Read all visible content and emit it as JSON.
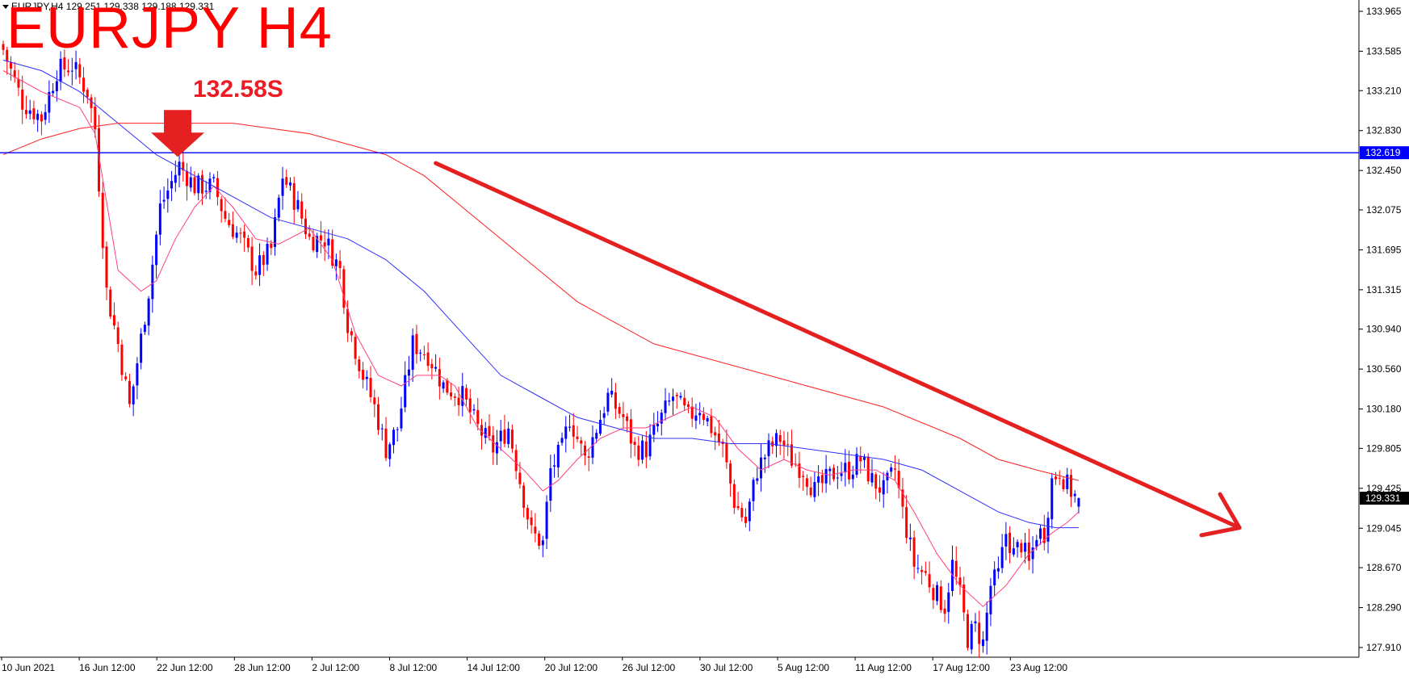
{
  "header": {
    "symbol_info": "EURJPY,H4  129.251 129.338 129.188 129.331",
    "title": "EURJPY H4",
    "annotation": "132.58S"
  },
  "colors": {
    "bull_candle": "#0000ff",
    "bear_candle": "#ff0000",
    "ma_fast": "#ff3f7f",
    "ma_mid": "#3030ff",
    "ma_slow": "#ff2020",
    "level_line": "#0000ff",
    "trend_arrow": "#e52020",
    "down_marker": "#e52020"
  },
  "chart_data": {
    "type": "candlestick",
    "symbol": "EURJPY",
    "timeframe": "H4",
    "ylim": [
      127.75,
      134.05
    ],
    "y_ticks": [
      "133.965",
      "133.585",
      "133.210",
      "132.830",
      "132.450",
      "132.075",
      "131.695",
      "131.315",
      "130.940",
      "130.560",
      "130.180",
      "129.805",
      "129.425",
      "129.045",
      "128.670",
      "128.290",
      "127.910"
    ],
    "x_ticks": [
      "10 Jun 2021",
      "16 Jun 12:00",
      "22 Jun 12:00",
      "28 Jun 12:00",
      "2 Jul 12:00",
      "8 Jul 12:00",
      "14 Jul 12:00",
      "20 Jul 12:00",
      "26 Jul 12:00",
      "30 Jul 12:00",
      "5 Aug 12:00",
      "11 Aug 12:00",
      "17 Aug 12:00",
      "23 Aug 12:00"
    ],
    "horizontal_level": {
      "price": 132.619,
      "label": "132.619"
    },
    "current_price": {
      "price": 129.331,
      "label": "129.331"
    },
    "last_bar": {
      "open": 129.251,
      "high": 129.338,
      "low": 129.188,
      "close": 129.331
    },
    "sell_marker": {
      "label": "132.58S",
      "price": 132.58,
      "bar_index": 46
    },
    "trend_arrow": {
      "direction": "down",
      "from_bar": 113,
      "from_price": 132.52,
      "to_bar": 323,
      "to_price": 129.05
    },
    "close_path": [
      [
        0,
        133.6
      ],
      [
        5,
        133.1
      ],
      [
        10,
        132.95
      ],
      [
        14,
        133.4
      ],
      [
        18,
        133.45
      ],
      [
        22,
        133.2
      ],
      [
        24,
        132.85
      ],
      [
        27,
        131.3
      ],
      [
        30,
        130.8
      ],
      [
        33,
        130.2
      ],
      [
        34,
        130.4
      ],
      [
        38,
        131.3
      ],
      [
        41,
        132.1
      ],
      [
        46,
        132.5
      ],
      [
        50,
        132.3
      ],
      [
        55,
        132.3
      ],
      [
        58,
        132.0
      ],
      [
        62,
        131.8
      ],
      [
        66,
        131.5
      ],
      [
        70,
        131.7
      ],
      [
        73,
        132.4
      ],
      [
        77,
        132.1
      ],
      [
        80,
        131.8
      ],
      [
        84,
        131.8
      ],
      [
        88,
        131.5
      ],
      [
        90,
        131.0
      ],
      [
        94,
        130.5
      ],
      [
        97,
        130.2
      ],
      [
        100,
        129.8
      ],
      [
        103,
        130.0
      ],
      [
        107,
        130.8
      ],
      [
        111,
        130.7
      ],
      [
        115,
        130.4
      ],
      [
        120,
        130.3
      ],
      [
        124,
        130.0
      ],
      [
        128,
        129.8
      ],
      [
        132,
        130.0
      ],
      [
        135,
        129.5
      ],
      [
        138,
        129.0
      ],
      [
        141,
        128.9
      ],
      [
        143,
        129.6
      ],
      [
        146,
        129.8
      ],
      [
        148,
        130.1
      ],
      [
        152,
        129.7
      ],
      [
        155,
        130.0
      ],
      [
        158,
        130.3
      ],
      [
        162,
        130.1
      ],
      [
        165,
        129.8
      ],
      [
        168,
        129.8
      ],
      [
        172,
        130.1
      ],
      [
        175,
        130.3
      ],
      [
        179,
        130.1
      ],
      [
        182,
        130.2
      ],
      [
        185,
        130.0
      ],
      [
        188,
        129.8
      ],
      [
        191,
        129.3
      ],
      [
        194,
        129.1
      ],
      [
        197,
        129.6
      ],
      [
        200,
        129.8
      ],
      [
        203,
        129.9
      ],
      [
        206,
        129.7
      ],
      [
        209,
        129.6
      ],
      [
        212,
        129.4
      ],
      [
        215,
        129.5
      ],
      [
        218,
        129.6
      ],
      [
        221,
        129.6
      ],
      [
        224,
        129.7
      ],
      [
        227,
        129.5
      ],
      [
        230,
        129.4
      ],
      [
        233,
        129.6
      ],
      [
        235,
        129.2
      ],
      [
        238,
        128.7
      ],
      [
        241,
        128.6
      ],
      [
        244,
        128.4
      ],
      [
        246,
        128.3
      ],
      [
        248,
        128.7
      ],
      [
        250,
        128.4
      ],
      [
        252,
        128.0
      ],
      [
        254,
        128.1
      ],
      [
        256,
        127.95
      ],
      [
        258,
        128.5
      ],
      [
        260,
        128.6
      ],
      [
        262,
        129.0
      ],
      [
        264,
        128.8
      ],
      [
        266,
        128.9
      ],
      [
        268,
        128.7
      ],
      [
        270,
        129.0
      ],
      [
        272,
        129.0
      ],
      [
        274,
        129.5
      ],
      [
        276,
        129.6
      ],
      [
        278,
        129.45
      ],
      [
        280,
        129.35
      ],
      [
        281,
        129.33
      ]
    ],
    "overlays": [
      {
        "type": "moving_average",
        "color": "#ff3f7f",
        "points": [
          [
            0,
            133.4
          ],
          [
            10,
            133.2
          ],
          [
            20,
            133.05
          ],
          [
            24,
            132.8
          ],
          [
            30,
            131.5
          ],
          [
            36,
            131.3
          ],
          [
            40,
            131.4
          ],
          [
            45,
            131.8
          ],
          [
            50,
            132.1
          ],
          [
            55,
            132.3
          ],
          [
            60,
            132.1
          ],
          [
            66,
            131.8
          ],
          [
            72,
            131.75
          ],
          [
            80,
            131.9
          ],
          [
            86,
            131.6
          ],
          [
            92,
            130.9
          ],
          [
            98,
            130.5
          ],
          [
            104,
            130.4
          ],
          [
            108,
            130.5
          ],
          [
            114,
            130.5
          ],
          [
            118,
            130.4
          ],
          [
            124,
            130.0
          ],
          [
            130,
            129.8
          ],
          [
            136,
            129.6
          ],
          [
            141,
            129.4
          ],
          [
            145,
            129.5
          ],
          [
            150,
            129.7
          ],
          [
            156,
            129.9
          ],
          [
            162,
            130.0
          ],
          [
            168,
            130.0
          ],
          [
            174,
            130.1
          ],
          [
            180,
            130.2
          ],
          [
            186,
            130.1
          ],
          [
            192,
            129.8
          ],
          [
            198,
            129.6
          ],
          [
            204,
            129.7
          ],
          [
            210,
            129.6
          ],
          [
            216,
            129.55
          ],
          [
            222,
            129.6
          ],
          [
            228,
            129.6
          ],
          [
            233,
            129.5
          ],
          [
            238,
            129.2
          ],
          [
            244,
            128.8
          ],
          [
            250,
            128.5
          ],
          [
            256,
            128.3
          ],
          [
            262,
            128.5
          ],
          [
            268,
            128.8
          ],
          [
            274,
            129.0
          ],
          [
            278,
            129.1
          ],
          [
            281,
            129.2
          ]
        ]
      },
      {
        "type": "moving_average",
        "color": "#3030ff",
        "points": [
          [
            0,
            133.5
          ],
          [
            10,
            133.4
          ],
          [
            20,
            133.2
          ],
          [
            30,
            132.9
          ],
          [
            40,
            132.6
          ],
          [
            50,
            132.4
          ],
          [
            60,
            132.2
          ],
          [
            70,
            132.0
          ],
          [
            80,
            131.9
          ],
          [
            90,
            131.8
          ],
          [
            100,
            131.6
          ],
          [
            110,
            131.3
          ],
          [
            120,
            130.9
          ],
          [
            130,
            130.5
          ],
          [
            140,
            130.3
          ],
          [
            150,
            130.1
          ],
          [
            160,
            130.0
          ],
          [
            170,
            129.9
          ],
          [
            180,
            129.9
          ],
          [
            190,
            129.85
          ],
          [
            200,
            129.85
          ],
          [
            210,
            129.8
          ],
          [
            220,
            129.75
          ],
          [
            230,
            129.7
          ],
          [
            240,
            129.6
          ],
          [
            250,
            129.4
          ],
          [
            260,
            129.2
          ],
          [
            268,
            129.1
          ],
          [
            275,
            129.05
          ],
          [
            281,
            129.05
          ]
        ]
      },
      {
        "type": "moving_average",
        "color": "#ff2020",
        "points": [
          [
            0,
            132.6
          ],
          [
            10,
            132.75
          ],
          [
            20,
            132.85
          ],
          [
            30,
            132.9
          ],
          [
            40,
            132.9
          ],
          [
            50,
            132.9
          ],
          [
            60,
            132.9
          ],
          [
            70,
            132.85
          ],
          [
            80,
            132.8
          ],
          [
            90,
            132.7
          ],
          [
            100,
            132.6
          ],
          [
            110,
            132.4
          ],
          [
            120,
            132.1
          ],
          [
            130,
            131.8
          ],
          [
            140,
            131.5
          ],
          [
            150,
            131.2
          ],
          [
            160,
            131.0
          ],
          [
            170,
            130.8
          ],
          [
            180,
            130.7
          ],
          [
            190,
            130.6
          ],
          [
            200,
            130.5
          ],
          [
            210,
            130.4
          ],
          [
            220,
            130.3
          ],
          [
            230,
            130.2
          ],
          [
            240,
            130.05
          ],
          [
            250,
            129.9
          ],
          [
            260,
            129.7
          ],
          [
            270,
            129.6
          ],
          [
            281,
            129.5
          ]
        ]
      }
    ]
  }
}
